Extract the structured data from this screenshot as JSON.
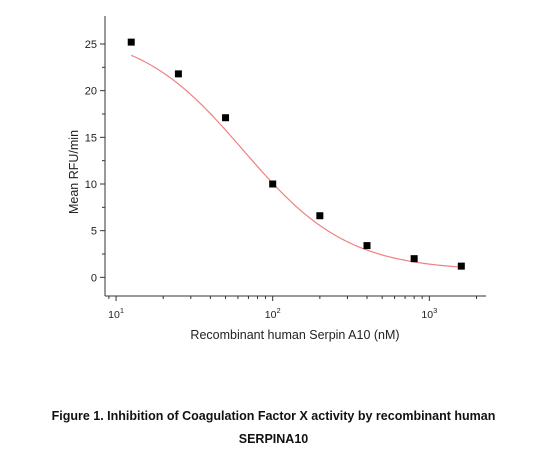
{
  "chart_data": {
    "type": "scatter",
    "xscale": "log",
    "xlabel": "Recombinant human Serpin A10 (nM)",
    "ylabel": "Mean RFU/min",
    "xlim": [
      8.5,
      2300
    ],
    "ylim": [
      -2,
      28
    ],
    "x_ticks": [
      {
        "value": 10,
        "base": "10",
        "exp": "1"
      },
      {
        "value": 100,
        "base": "10",
        "exp": "2"
      },
      {
        "value": 1000,
        "base": "10",
        "exp": "3"
      }
    ],
    "y_ticks": [
      0,
      5,
      10,
      15,
      20,
      25
    ],
    "y_tick_labels": [
      "0",
      "5",
      "10",
      "15",
      "20",
      "25"
    ],
    "points": [
      {
        "x": 12.5,
        "y": 25.2
      },
      {
        "x": 25,
        "y": 21.8
      },
      {
        "x": 50,
        "y": 17.1
      },
      {
        "x": 100,
        "y": 10.0
      },
      {
        "x": 200,
        "y": 6.6
      },
      {
        "x": 400,
        "y": 3.4
      },
      {
        "x": 800,
        "y": 2.0
      },
      {
        "x": 1600,
        "y": 1.2
      }
    ],
    "fit": {
      "type": "4PL",
      "top": 26.5,
      "bottom": 0.7,
      "ec50": 65,
      "hill": 1.3
    },
    "grid": false,
    "legend": "none"
  },
  "caption": {
    "line1": "Figure 1. Inhibition of Coagulation Factor X activity by recombinant human",
    "line2": "SERPINA10"
  },
  "colors": {
    "marker": "#000000",
    "fit_line": "#f08080",
    "axis": "#333333"
  }
}
